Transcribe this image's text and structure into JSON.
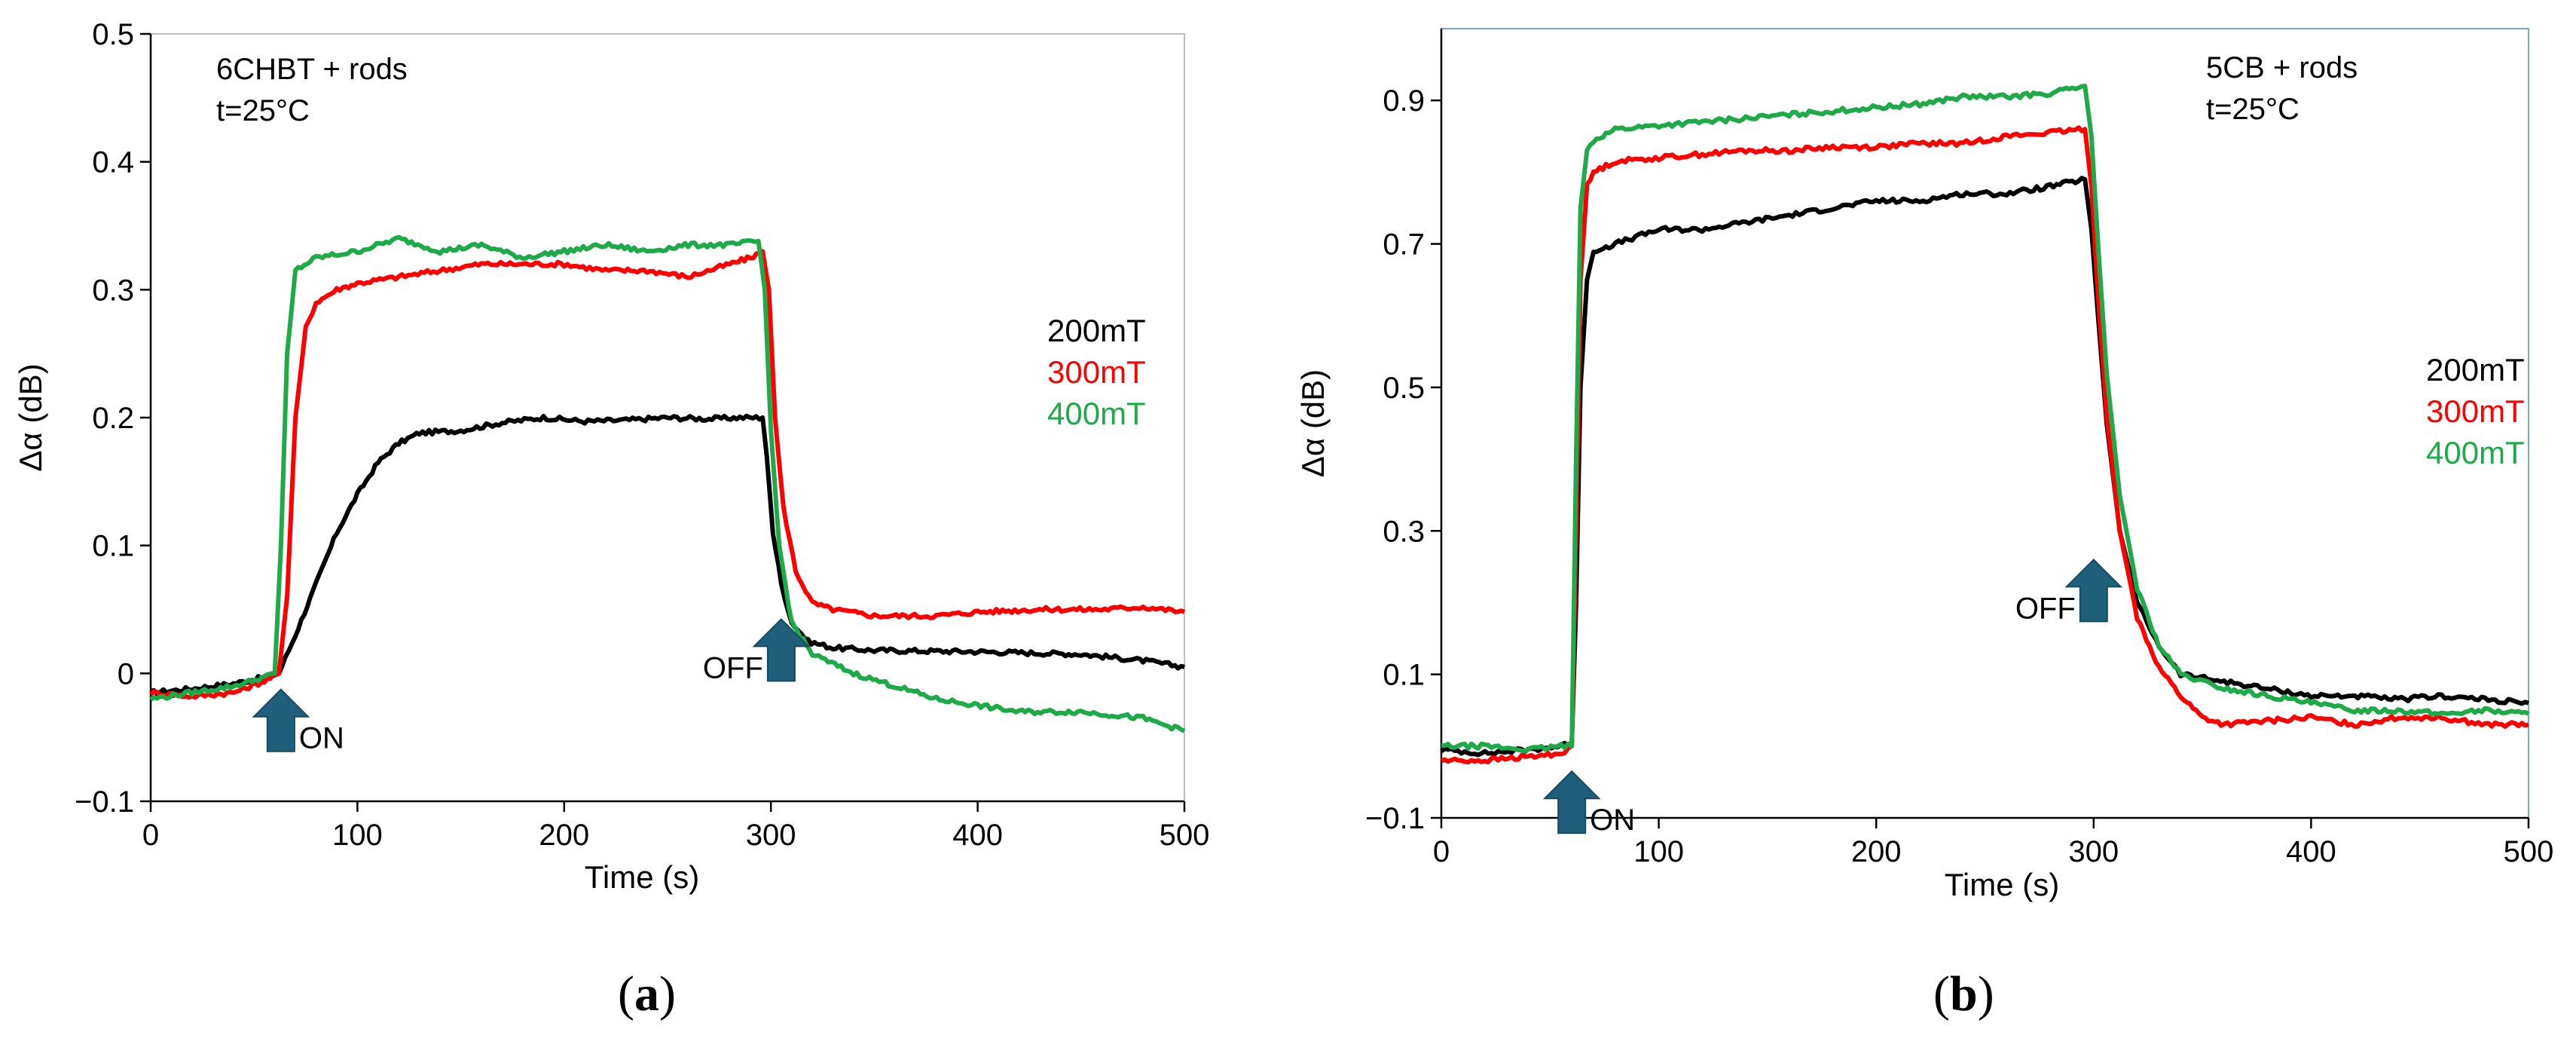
{
  "chart_data": [
    {
      "type": "line",
      "panel_label_open": "(",
      "panel_label_letter": "a",
      "panel_label_close": ")",
      "annotation_lines": [
        "6CHBT + rods",
        "t=25°C"
      ],
      "xlabel": "Time (s)",
      "ylabel": "Δα (dB)",
      "xlim": [
        0,
        500
      ],
      "ylim": [
        -0.1,
        0.5
      ],
      "xticks": [
        0,
        100,
        200,
        300,
        400,
        500
      ],
      "xtick_labels": [
        "0",
        "100",
        "200",
        "300",
        "400",
        "500"
      ],
      "yticks": [
        -0.1,
        0,
        0.1,
        0.2,
        0.3,
        0.4,
        0.5
      ],
      "ytick_labels": [
        "−0.1",
        "0",
        "0.1",
        "0.2",
        "0.3",
        "0.4",
        "0.5"
      ],
      "arrows": [
        {
          "label": "ON",
          "x": 63,
          "y": -0.035,
          "label_side": "right"
        },
        {
          "label": "OFF",
          "x": 305,
          "y": 0.02,
          "label_side": "left"
        }
      ],
      "legend_position": "right",
      "series": [
        {
          "name": "200mT",
          "color": "#000000",
          "points": [
            [
              0,
              -0.015
            ],
            [
              20,
              -0.012
            ],
            [
              40,
              -0.008
            ],
            [
              55,
              -0.003
            ],
            [
              62,
              0.0
            ],
            [
              70,
              0.03
            ],
            [
              80,
              0.07
            ],
            [
              90,
              0.11
            ],
            [
              100,
              0.14
            ],
            [
              110,
              0.165
            ],
            [
              120,
              0.18
            ],
            [
              130,
              0.188
            ],
            [
              150,
              0.19
            ],
            [
              170,
              0.196
            ],
            [
              190,
              0.2
            ],
            [
              210,
              0.197
            ],
            [
              230,
              0.198
            ],
            [
              250,
              0.2
            ],
            [
              270,
              0.199
            ],
            [
              285,
              0.2
            ],
            [
              296,
              0.2
            ],
            [
              298,
              0.17
            ],
            [
              301,
              0.11
            ],
            [
              305,
              0.07
            ],
            [
              310,
              0.04
            ],
            [
              318,
              0.025
            ],
            [
              330,
              0.02
            ],
            [
              350,
              0.018
            ],
            [
              400,
              0.017
            ],
            [
              450,
              0.015
            ],
            [
              480,
              0.01
            ],
            [
              500,
              0.005
            ]
          ]
        },
        {
          "name": "300mT",
          "color": "#ff0000",
          "points": [
            [
              0,
              -0.015
            ],
            [
              20,
              -0.018
            ],
            [
              40,
              -0.015
            ],
            [
              55,
              -0.006
            ],
            [
              62,
              0.0
            ],
            [
              66,
              0.06
            ],
            [
              70,
              0.2
            ],
            [
              75,
              0.27
            ],
            [
              80,
              0.29
            ],
            [
              90,
              0.3
            ],
            [
              100,
              0.305
            ],
            [
              120,
              0.31
            ],
            [
              140,
              0.315
            ],
            [
              160,
              0.32
            ],
            [
              180,
              0.32
            ],
            [
              200,
              0.32
            ],
            [
              220,
              0.315
            ],
            [
              240,
              0.315
            ],
            [
              260,
              0.31
            ],
            [
              280,
              0.32
            ],
            [
              290,
              0.325
            ],
            [
              296,
              0.33
            ],
            [
              299,
              0.3
            ],
            [
              302,
              0.2
            ],
            [
              306,
              0.13
            ],
            [
              312,
              0.08
            ],
            [
              320,
              0.055
            ],
            [
              330,
              0.05
            ],
            [
              350,
              0.045
            ],
            [
              380,
              0.045
            ],
            [
              400,
              0.048
            ],
            [
              430,
              0.05
            ],
            [
              460,
              0.05
            ],
            [
              480,
              0.052
            ],
            [
              500,
              0.048
            ]
          ]
        },
        {
          "name": "400mT",
          "color": "#1faa4a",
          "points": [
            [
              0,
              -0.02
            ],
            [
              20,
              -0.015
            ],
            [
              40,
              -0.01
            ],
            [
              55,
              -0.003
            ],
            [
              60,
              0.0
            ],
            [
              63,
              0.1
            ],
            [
              66,
              0.25
            ],
            [
              70,
              0.315
            ],
            [
              80,
              0.325
            ],
            [
              100,
              0.33
            ],
            [
              120,
              0.34
            ],
            [
              140,
              0.33
            ],
            [
              160,
              0.335
            ],
            [
              180,
              0.325
            ],
            [
              200,
              0.33
            ],
            [
              220,
              0.335
            ],
            [
              240,
              0.33
            ],
            [
              260,
              0.335
            ],
            [
              280,
              0.335
            ],
            [
              294,
              0.338
            ],
            [
              297,
              0.3
            ],
            [
              300,
              0.19
            ],
            [
              304,
              0.1
            ],
            [
              310,
              0.04
            ],
            [
              320,
              0.015
            ],
            [
              340,
              0.0
            ],
            [
              360,
              -0.01
            ],
            [
              380,
              -0.02
            ],
            [
              400,
              -0.025
            ],
            [
              420,
              -0.03
            ],
            [
              450,
              -0.03
            ],
            [
              480,
              -0.035
            ],
            [
              500,
              -0.045
            ]
          ]
        }
      ]
    },
    {
      "type": "line",
      "panel_label_open": "(",
      "panel_label_letter": "b",
      "panel_label_close": ")",
      "annotation_lines": [
        "5CB + rods",
        "t=25°C"
      ],
      "xlabel": "Time (s)",
      "ylabel": "Δα (dB)",
      "xlim": [
        0,
        500
      ],
      "ylim": [
        -0.1,
        1.0
      ],
      "xticks": [
        0,
        100,
        200,
        300,
        400,
        500
      ],
      "xtick_labels": [
        "0",
        "100",
        "200",
        "300",
        "400",
        "500"
      ],
      "yticks": [
        -0.1,
        0.1,
        0.3,
        0.5,
        0.7,
        0.9
      ],
      "ytick_labels": [
        "−0.1",
        "0.1",
        "0.3",
        "0.5",
        "0.7",
        "0.9"
      ],
      "arrows": [
        {
          "label": "ON",
          "x": 60,
          "y": -0.075,
          "label_side": "right"
        },
        {
          "label": "OFF",
          "x": 300,
          "y": 0.22,
          "label_side": "left"
        }
      ],
      "legend_position": "right",
      "series": [
        {
          "name": "200mT",
          "color": "#000000",
          "points": [
            [
              0,
              -0.005
            ],
            [
              20,
              -0.01
            ],
            [
              40,
              -0.005
            ],
            [
              55,
              0.0
            ],
            [
              60,
              0.005
            ],
            [
              62,
              0.2
            ],
            [
              64,
              0.5
            ],
            [
              67,
              0.65
            ],
            [
              70,
              0.69
            ],
            [
              80,
              0.7
            ],
            [
              100,
              0.72
            ],
            [
              120,
              0.72
            ],
            [
              140,
              0.73
            ],
            [
              160,
              0.74
            ],
            [
              180,
              0.75
            ],
            [
              200,
              0.76
            ],
            [
              220,
              0.76
            ],
            [
              240,
              0.77
            ],
            [
              260,
              0.77
            ],
            [
              280,
              0.78
            ],
            [
              296,
              0.79
            ],
            [
              299,
              0.72
            ],
            [
              302,
              0.6
            ],
            [
              306,
              0.45
            ],
            [
              312,
              0.3
            ],
            [
              320,
              0.2
            ],
            [
              330,
              0.14
            ],
            [
              340,
              0.1
            ],
            [
              360,
              0.09
            ],
            [
              380,
              0.08
            ],
            [
              400,
              0.07
            ],
            [
              420,
              0.07
            ],
            [
              440,
              0.065
            ],
            [
              460,
              0.07
            ],
            [
              480,
              0.065
            ],
            [
              500,
              0.06
            ]
          ]
        },
        {
          "name": "300mT",
          "color": "#ff0000",
          "points": [
            [
              0,
              -0.02
            ],
            [
              20,
              -0.02
            ],
            [
              40,
              -0.015
            ],
            [
              55,
              -0.01
            ],
            [
              60,
              0.0
            ],
            [
              62,
              0.3
            ],
            [
              64,
              0.65
            ],
            [
              67,
              0.78
            ],
            [
              70,
              0.8
            ],
            [
              80,
              0.815
            ],
            [
              100,
              0.82
            ],
            [
              120,
              0.825
            ],
            [
              140,
              0.83
            ],
            [
              160,
              0.83
            ],
            [
              180,
              0.835
            ],
            [
              200,
              0.835
            ],
            [
              220,
              0.84
            ],
            [
              240,
              0.84
            ],
            [
              260,
              0.85
            ],
            [
              280,
              0.855
            ],
            [
              296,
              0.86
            ],
            [
              299,
              0.78
            ],
            [
              302,
              0.63
            ],
            [
              306,
              0.46
            ],
            [
              312,
              0.3
            ],
            [
              320,
              0.18
            ],
            [
              330,
              0.11
            ],
            [
              340,
              0.07
            ],
            [
              350,
              0.04
            ],
            [
              360,
              0.03
            ],
            [
              380,
              0.035
            ],
            [
              400,
              0.04
            ],
            [
              420,
              0.03
            ],
            [
              440,
              0.04
            ],
            [
              460,
              0.04
            ],
            [
              480,
              0.03
            ],
            [
              500,
              0.03
            ]
          ]
        },
        {
          "name": "400mT",
          "color": "#1faa4a",
          "points": [
            [
              0,
              0.0
            ],
            [
              20,
              0.0
            ],
            [
              40,
              -0.005
            ],
            [
              55,
              0.0
            ],
            [
              60,
              0.0
            ],
            [
              62,
              0.4
            ],
            [
              64,
              0.75
            ],
            [
              67,
              0.83
            ],
            [
              70,
              0.845
            ],
            [
              80,
              0.86
            ],
            [
              100,
              0.865
            ],
            [
              120,
              0.87
            ],
            [
              140,
              0.875
            ],
            [
              160,
              0.88
            ],
            [
              180,
              0.885
            ],
            [
              200,
              0.89
            ],
            [
              220,
              0.895
            ],
            [
              240,
              0.905
            ],
            [
              260,
              0.905
            ],
            [
              280,
              0.91
            ],
            [
              296,
              0.92
            ],
            [
              299,
              0.85
            ],
            [
              302,
              0.7
            ],
            [
              306,
              0.52
            ],
            [
              312,
              0.35
            ],
            [
              320,
              0.22
            ],
            [
              330,
              0.14
            ],
            [
              340,
              0.1
            ],
            [
              360,
              0.08
            ],
            [
              380,
              0.07
            ],
            [
              400,
              0.06
            ],
            [
              420,
              0.05
            ],
            [
              440,
              0.05
            ],
            [
              460,
              0.045
            ],
            [
              480,
              0.05
            ],
            [
              500,
              0.045
            ]
          ]
        }
      ]
    }
  ]
}
